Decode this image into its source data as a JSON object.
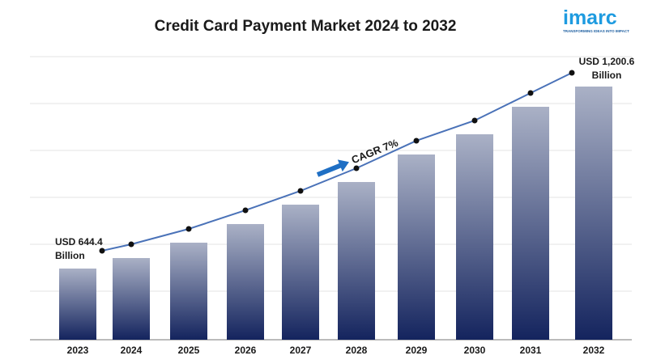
{
  "chart_data": {
    "type": "bar",
    "title": "Credit Card Payment Market 2024 to 2032",
    "categories": [
      "2023",
      "2024",
      "2025",
      "2026",
      "2027",
      "2028",
      "2029",
      "2030",
      "2031",
      "2032"
    ],
    "series": [
      {
        "values": [
          644.4,
          676.5,
          723.5,
          780.4,
          839.7,
          908.9,
          993.0,
          1054.8,
          1138.8,
          1200.6
        ],
        "value_labels": [
          "USD 644.4 Billion",
          null,
          null,
          null,
          null,
          null,
          null,
          null,
          null,
          "USD 1,200.6 Billion"
        ],
        "color": "#14245e",
        "gradient_top": "#aab1c6",
        "line_color": "#4a72b8"
      }
    ],
    "annotations": [
      "CAGR 7%"
    ]
  },
  "logo": {
    "name": "imarc",
    "tagline": "TRANSFORMING IDEAS INTO IMPACT"
  }
}
